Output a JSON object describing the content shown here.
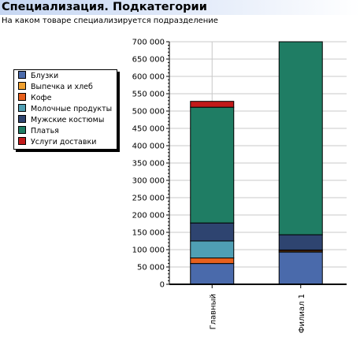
{
  "header": {
    "title": "Специализация. Подкатегории",
    "subtitle": "На каком товаре специализируется подразделение"
  },
  "chart_data": {
    "type": "bar",
    "stacked": true,
    "categories": [
      "Главный",
      "Филиал 1"
    ],
    "series": [
      {
        "name": "Блузки",
        "color": "#4a6aab",
        "values": [
          60000,
          93000
        ]
      },
      {
        "name": "Выпечка и хлеб",
        "color": "#f0a030",
        "values": [
          0,
          3000
        ]
      },
      {
        "name": "Кофе",
        "color": "#e8601c",
        "values": [
          16000,
          3000
        ]
      },
      {
        "name": "Молочные продукты",
        "color": "#4f9fb4",
        "values": [
          49000,
          0
        ]
      },
      {
        "name": "Мужские костюмы",
        "color": "#2e4470",
        "values": [
          52000,
          44000
        ]
      },
      {
        "name": "Платья",
        "color": "#1f7d64",
        "values": [
          334000,
          557000
        ]
      },
      {
        "name": "Услуги доставки",
        "color": "#c21a1a",
        "values": [
          17000,
          0
        ]
      }
    ],
    "yticks": [
      "0",
      "50 000",
      "100 000",
      "150 000",
      "200 000",
      "250 000",
      "300 000",
      "350 000",
      "400 000",
      "450 000",
      "500 000",
      "550 000",
      "600 000",
      "650 000",
      "700 000"
    ],
    "ylim": [
      0,
      700000
    ],
    "ystep": 50000,
    "grid": true,
    "legend_position": "left"
  }
}
